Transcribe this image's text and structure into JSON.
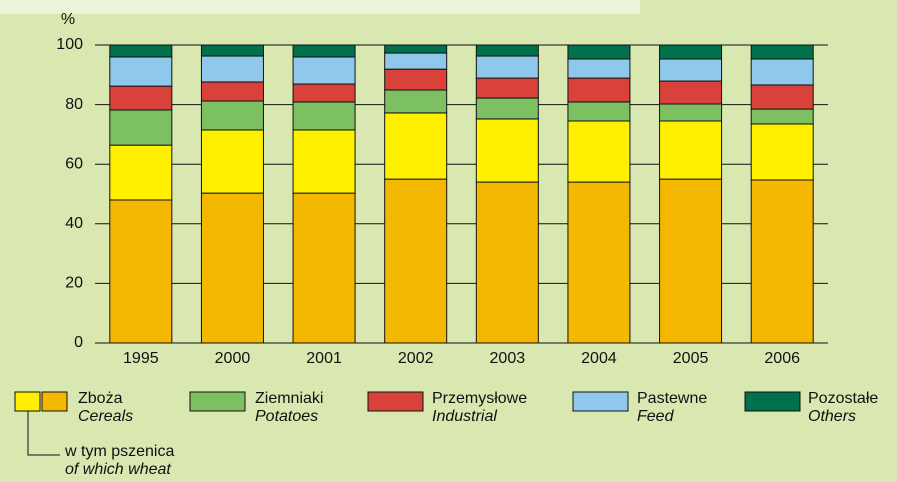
{
  "chart_data": {
    "type": "bar",
    "stacked": true,
    "y_label": "%",
    "categories": [
      "1995",
      "2000",
      "2001",
      "2002",
      "2003",
      "2004",
      "2005",
      "2006"
    ],
    "series": [
      {
        "name": "w tym pszenica",
        "name_en": "of which wheat",
        "color": "#f5b800",
        "values": [
          48,
          50.3,
          50.3,
          55,
          54,
          54,
          55,
          54.7
        ]
      },
      {
        "name": "Zboża",
        "name_en": "Cereals",
        "color": "#fff000",
        "values": [
          18.4,
          21.2,
          21.2,
          22.2,
          21.2,
          20.5,
          19.5,
          18.8
        ]
      },
      {
        "name": "Ziemniaki",
        "name_en": "Potatoes",
        "color": "#7cc062",
        "values": [
          11.8,
          9.7,
          9.4,
          7.7,
          7,
          6.4,
          5.7,
          5
        ]
      },
      {
        "name": "Przemysłowe",
        "name_en": "Industrial",
        "color": "#d9413b",
        "values": [
          8,
          6.4,
          6,
          7,
          6.7,
          8,
          7.7,
          8.1
        ]
      },
      {
        "name": "Pastewne",
        "name_en": "Feed",
        "color": "#8fc8ea",
        "values": [
          9.8,
          8.7,
          9.1,
          5.4,
          7.4,
          6.4,
          7.4,
          8.7
        ]
      },
      {
        "name": "Pozostałe",
        "name_en": "Others",
        "color": "#00714c",
        "values": [
          4,
          3.7,
          4,
          2.7,
          3.7,
          4.7,
          4.7,
          4.7
        ]
      }
    ],
    "ylim": [
      0,
      100
    ],
    "yticks": [
      0,
      20,
      40,
      60,
      80,
      100
    ],
    "grid": true
  }
}
